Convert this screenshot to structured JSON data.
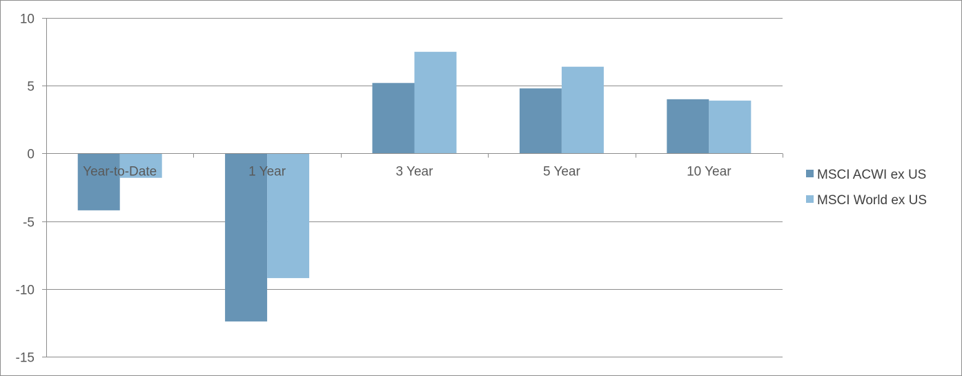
{
  "chart_data": {
    "type": "bar",
    "categories": [
      "Year-to-Date",
      "1 Year",
      "3 Year",
      "5 Year",
      "10 Year"
    ],
    "series": [
      {
        "name": "MSCI ACWI ex US",
        "values": [
          -4.2,
          -12.4,
          5.2,
          4.8,
          4.0
        ],
        "color": "#6794b5"
      },
      {
        "name": "MSCI World ex US",
        "values": [
          -1.8,
          -9.2,
          7.5,
          6.4,
          3.9
        ],
        "color": "#8fbcdb"
      }
    ],
    "ylim": [
      -15,
      10
    ],
    "yticks": [
      10,
      5,
      0,
      -5,
      -10,
      -15
    ],
    "grid": true,
    "legend": "right",
    "title": "",
    "xlabel": "",
    "ylabel": ""
  }
}
